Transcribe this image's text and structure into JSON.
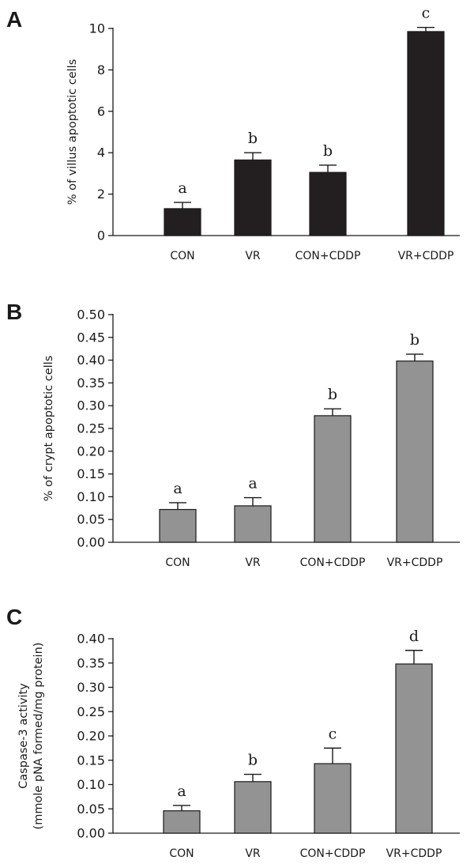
{
  "figure": {
    "panels": [
      "A",
      "B",
      "C"
    ]
  },
  "chart_data": [
    {
      "panel": "A",
      "type": "bar",
      "ylabel": [
        "% of villus apoptotic cells"
      ],
      "xlabel": "",
      "ylim": [
        0,
        10
      ],
      "yticks": [
        0,
        2,
        4,
        6,
        8,
        10
      ],
      "ytick_labels": [
        "0",
        "2",
        "4",
        "6",
        "8",
        "10"
      ],
      "categories": [
        "CON",
        "VR",
        "CON+CDDP",
        "VR+CDDP"
      ],
      "values": [
        1.3,
        3.65,
        3.05,
        9.85
      ],
      "errors": [
        0.3,
        0.35,
        0.35,
        0.2
      ],
      "significance": [
        "a",
        "b",
        "b",
        "c"
      ],
      "bar_color": "#231f20"
    },
    {
      "panel": "B",
      "type": "bar",
      "ylabel": [
        "% of crypt apoptotic cells"
      ],
      "xlabel": "",
      "ylim": [
        0,
        0.5
      ],
      "yticks": [
        0,
        0.05,
        0.1,
        0.15,
        0.2,
        0.25,
        0.3,
        0.35,
        0.4,
        0.45,
        0.5
      ],
      "ytick_labels": [
        "0.00",
        "0.05",
        "0.10",
        "0.15",
        "0.20",
        "0.25",
        "0.30",
        "0.35",
        "0.40",
        "0.45",
        "0.50"
      ],
      "categories": [
        "CON",
        "VR",
        "CON+CDDP",
        "VR+CDDP"
      ],
      "values": [
        0.072,
        0.08,
        0.278,
        0.398
      ],
      "errors": [
        0.015,
        0.018,
        0.015,
        0.015
      ],
      "significance": [
        "a",
        "a",
        "b",
        "b"
      ],
      "bar_color": "#939393"
    },
    {
      "panel": "C",
      "type": "bar",
      "ylabel": [
        "Caspase-3 activity",
        "(mmole pNA formed/mg protein)"
      ],
      "xlabel": "",
      "ylim": [
        0,
        0.4
      ],
      "yticks": [
        0,
        0.05,
        0.1,
        0.15,
        0.2,
        0.25,
        0.3,
        0.35,
        0.4
      ],
      "ytick_labels": [
        "0.00",
        "0.05",
        "0.10",
        "0.15",
        "0.20",
        "0.25",
        "0.30",
        "0.35",
        "0.40"
      ],
      "categories": [
        "CON",
        "VR",
        "CON+CDDP",
        "VR+CDDP"
      ],
      "values": [
        0.046,
        0.106,
        0.143,
        0.348
      ],
      "errors": [
        0.011,
        0.015,
        0.032,
        0.028
      ],
      "significance": [
        "a",
        "b",
        "c",
        "d"
      ],
      "bar_color": "#939393"
    }
  ]
}
